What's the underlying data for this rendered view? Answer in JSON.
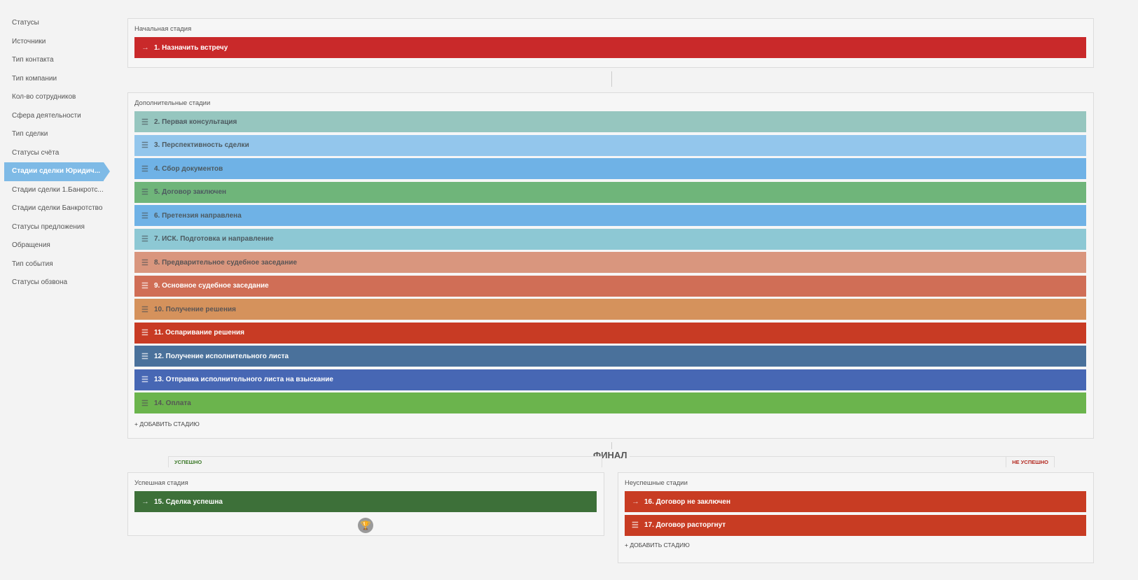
{
  "sidebar": {
    "items": [
      "Статусы",
      "Источники",
      "Тип контакта",
      "Тип компании",
      "Кол-во сотрудников",
      "Сфера деятельности",
      "Тип сделки",
      "Статусы счёта",
      "Стадии сделки Юридич...",
      "Стадии сделки 1.Банкротс...",
      "Стадии сделки Банкротство",
      "Статусы предложения",
      "Обращения",
      "Тип события",
      "Статусы обзвона"
    ],
    "active": 8
  },
  "initial": {
    "title": "Начальная стадия",
    "stage": {
      "label": "1. Назначить встречу",
      "color": "#c9292a",
      "text": "#ffffff",
      "icon": "arrow-right-icon"
    }
  },
  "additional": {
    "title": "Дополнительные стадии",
    "add_label": "+ ДОБАВИТЬ СТАДИЮ",
    "stages": [
      {
        "label": "2. Первая консультация",
        "color": "#96c6bf",
        "text": "#4d5a60"
      },
      {
        "label": "3. Перспективность сделки",
        "color": "#93c6ec",
        "text": "#4d5a60"
      },
      {
        "label": "4. Сбор документов",
        "color": "#6fb2e6",
        "text": "#4d5a60"
      },
      {
        "label": "5. Договор заключен",
        "color": "#6fb57a",
        "text": "#4d5a60"
      },
      {
        "label": "6. Претензия направлена",
        "color": "#6fb2e6",
        "text": "#4d5a60"
      },
      {
        "label": "7. ИСК. Подготовка и направление",
        "color": "#8dc8d4",
        "text": "#4d5a60"
      },
      {
        "label": "8. Предварительное судебное заседание",
        "color": "#d9967e",
        "text": "#5a5555"
      },
      {
        "label": "9. Основное судебное заседание",
        "color": "#d06e56",
        "text": "#ffffff"
      },
      {
        "label": "10. Получение решения",
        "color": "#d5925c",
        "text": "#5a5555"
      },
      {
        "label": "11. Оспаривание решения",
        "color": "#c83b24",
        "text": "#ffffff"
      },
      {
        "label": "12. Получение исполнительного листа",
        "color": "#4a719b",
        "text": "#ffffff"
      },
      {
        "label": "13. Отправка исполнительного листа на взыскание",
        "color": "#4767b4",
        "text": "#ffffff"
      },
      {
        "label": "14. Оплата",
        "color": "#6bb44d",
        "text": "#555555"
      }
    ]
  },
  "final": {
    "title": "ФИНАЛ",
    "success_tag": "УСПЕШНО",
    "fail_tag": "НЕ УСПЕШНО"
  },
  "success": {
    "title": "Успешная стадия",
    "stage": {
      "label": "15. Сделка успешна",
      "color": "#3d7039",
      "text": "#ffffff"
    }
  },
  "fail": {
    "title": "Неуспешные стадии",
    "add_label": "+ ДОБАВИТЬ СТАДИЮ",
    "stages": [
      {
        "label": "16. Договор не заключен",
        "color": "#c83c23",
        "text": "#ffffff",
        "icon": "arrow-right-icon"
      },
      {
        "label": "17. Договор расторгнут",
        "color": "#c83c23",
        "text": "#ffffff",
        "icon": "drag-handle-icon"
      }
    ]
  }
}
